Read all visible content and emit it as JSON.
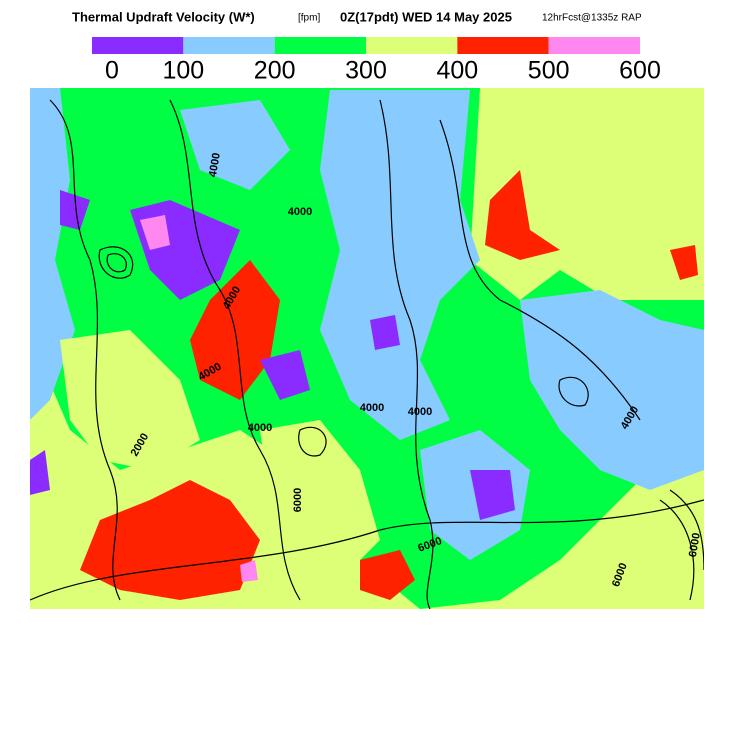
{
  "header": {
    "title": "Thermal Updraft Velocity (W*)",
    "units": "[fpm]",
    "valid_time": "0Z(17pdt) WED 14 May 2025",
    "forecast": "12hrFcst@1335z RAP"
  },
  "legend": {
    "colors": [
      "#8a2cff",
      "#88ccff",
      "#00ff44",
      "#ddff77",
      "#ff2200",
      "#ff88f0"
    ],
    "labels": [
      0,
      100,
      200,
      300,
      400,
      500,
      600
    ]
  },
  "map": {
    "contour_labels": [
      "4000",
      "4000",
      "4000",
      "4000",
      "4000",
      "4000",
      "4000",
      "6000",
      "6000",
      "4000",
      "2000",
      "6000",
      "6000"
    ]
  }
}
